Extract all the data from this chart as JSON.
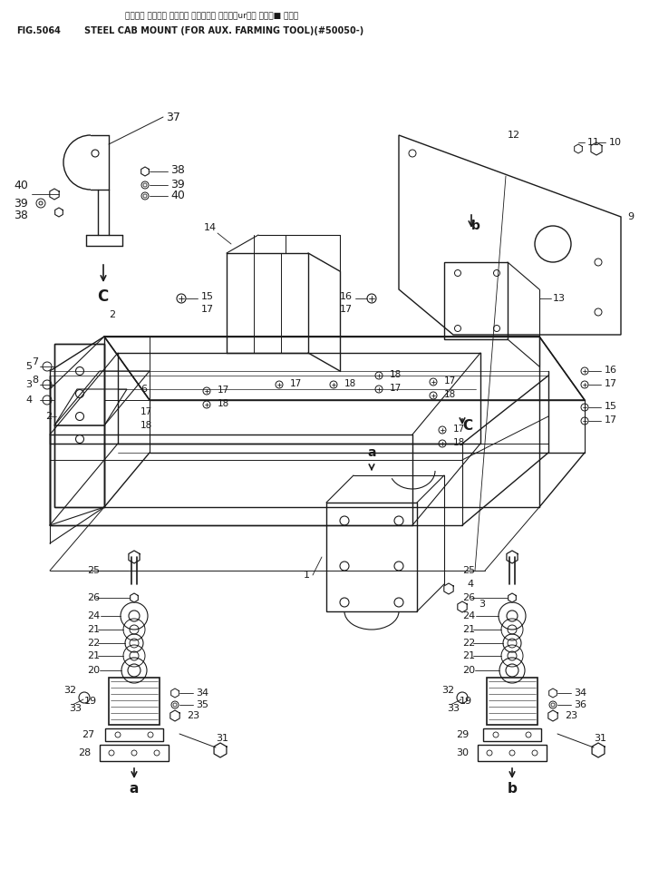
{
  "title_jp": "スチール キャブ゚ マウント（ノウコウ サキ゚・urウキ ホシ゚■ ヨウ）",
  "title_en": "STEEL CAB MOUNT (FOR AUX. FARMING TOOL)(#50050-)",
  "fig_label": "FIG.5064",
  "bg_color": "#ffffff",
  "line_color": "#1a1a1a",
  "text_color": "#1a1a1a",
  "title_jp2": "スチール キャブ゚ マウント （ノウコウ サキ゚・ウキ ホシ゚■ ヨウ）"
}
